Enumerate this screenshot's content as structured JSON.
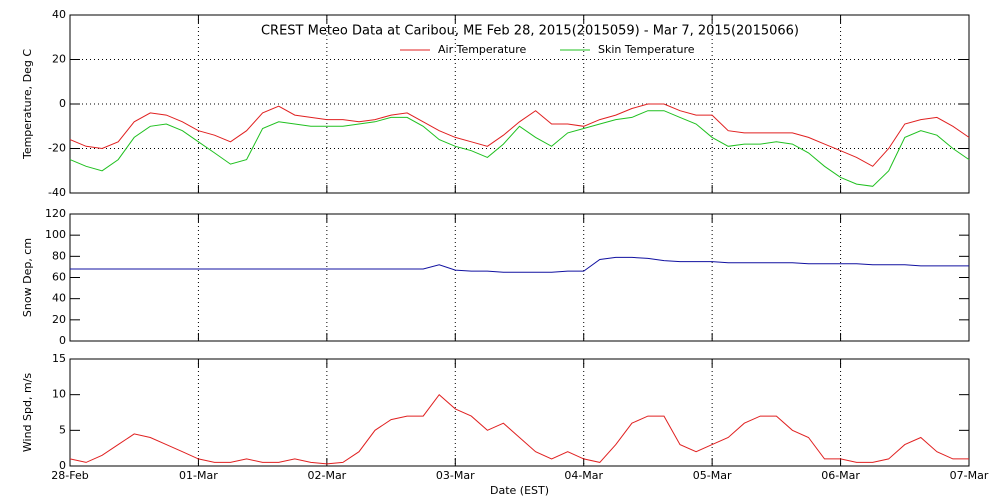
{
  "chart_data": [
    {
      "type": "line",
      "title": "CREST Meteo Data at Caribou, ME   Feb 28, 2015(2015059) - Mar  7, 2015(2015066)",
      "ylabel": "Temperature, Deg C",
      "legend": "top",
      "grid": true,
      "x": [
        0,
        0.125,
        0.25,
        0.375,
        0.5,
        0.625,
        0.75,
        0.875,
        1,
        1.125,
        1.25,
        1.375,
        1.5,
        1.625,
        1.75,
        1.875,
        2,
        2.125,
        2.25,
        2.375,
        2.5,
        2.625,
        2.75,
        2.875,
        3,
        3.125,
        3.25,
        3.375,
        3.5,
        3.625,
        3.75,
        3.875,
        4,
        4.125,
        4.25,
        4.375,
        4.5,
        4.625,
        4.75,
        4.875,
        5,
        5.125,
        5.25,
        5.375,
        5.5,
        5.625,
        5.75,
        5.875,
        6,
        6.125,
        6.25,
        6.375,
        6.5,
        6.625,
        6.75,
        6.875,
        7
      ],
      "xlim": [
        0,
        7
      ],
      "xticks": [
        0,
        1,
        2,
        3,
        4,
        5,
        6,
        7
      ],
      "ylim": [
        -40,
        40
      ],
      "yticks": [
        -40,
        -20,
        0,
        20,
        40
      ],
      "series": [
        {
          "name": "Air Temperature",
          "color": "#e02020",
          "values": [
            -16,
            -19,
            -20,
            -17,
            -8,
            -4,
            -5,
            -8,
            -12,
            -14,
            -17,
            -12,
            -4,
            -1,
            -5,
            -6,
            -7,
            -7,
            -8,
            -7,
            -5,
            -4,
            -8,
            -12,
            -15,
            -17,
            -19,
            -14,
            -8,
            -3,
            -9,
            -9,
            -10,
            -7,
            -5,
            -2,
            0,
            0,
            -3,
            -5,
            -5,
            -12,
            -13,
            -13,
            -13,
            -13,
            -15,
            -18,
            -21,
            -24,
            -28,
            -20,
            -9,
            -7,
            -6,
            -10,
            -15
          ]
        },
        {
          "name": "Skin Temperature",
          "color": "#20c020",
          "values": [
            -25,
            -28,
            -30,
            -25,
            -15,
            -10,
            -9,
            -12,
            -17,
            -22,
            -27,
            -25,
            -11,
            -8,
            -9,
            -10,
            -10,
            -10,
            -9,
            -8,
            -6,
            -6,
            -10,
            -16,
            -19,
            -21,
            -24,
            -18,
            -10,
            -15,
            -19,
            -13,
            -11,
            -9,
            -7,
            -6,
            -3,
            -3,
            -6,
            -9,
            -15,
            -19,
            -18,
            -18,
            -17,
            -18,
            -22,
            -28,
            -33,
            -36,
            -37,
            -30,
            -15,
            -12,
            -14,
            -20,
            -25
          ]
        }
      ]
    },
    {
      "type": "line",
      "ylabel": "Snow Dep, cm",
      "grid": false,
      "x": [
        0,
        0.125,
        0.25,
        0.375,
        0.5,
        0.625,
        0.75,
        0.875,
        1,
        1.125,
        1.25,
        1.375,
        1.5,
        1.625,
        1.75,
        1.875,
        2,
        2.125,
        2.25,
        2.375,
        2.5,
        2.625,
        2.75,
        2.875,
        3,
        3.125,
        3.25,
        3.375,
        3.5,
        3.625,
        3.75,
        3.875,
        4,
        4.125,
        4.25,
        4.375,
        4.5,
        4.625,
        4.75,
        4.875,
        5,
        5.125,
        5.25,
        5.375,
        5.5,
        5.625,
        5.75,
        5.875,
        6,
        6.125,
        6.25,
        6.375,
        6.5,
        6.625,
        6.75,
        6.875,
        7
      ],
      "xlim": [
        0,
        7
      ],
      "xticks": [
        0,
        1,
        2,
        3,
        4,
        5,
        6,
        7
      ],
      "ylim": [
        0,
        120
      ],
      "yticks": [
        0,
        20,
        40,
        60,
        80,
        100,
        120
      ],
      "series": [
        {
          "name": "Snow Depth",
          "color": "#1010a0",
          "values": [
            68,
            68,
            68,
            68,
            68,
            68,
            68,
            68,
            68,
            68,
            68,
            68,
            68,
            68,
            68,
            68,
            68,
            68,
            68,
            68,
            68,
            68,
            68,
            72,
            67,
            66,
            66,
            65,
            65,
            65,
            65,
            66,
            66,
            77,
            79,
            79,
            78,
            76,
            75,
            75,
            75,
            74,
            74,
            74,
            74,
            74,
            73,
            73,
            73,
            73,
            72,
            72,
            72,
            71,
            71,
            71,
            71
          ]
        }
      ]
    },
    {
      "type": "line",
      "ylabel": "Wind Spd, m/s",
      "xlabel": "Date (EST)",
      "grid": false,
      "x": [
        0,
        0.125,
        0.25,
        0.375,
        0.5,
        0.625,
        0.75,
        0.875,
        1,
        1.125,
        1.25,
        1.375,
        1.5,
        1.625,
        1.75,
        1.875,
        2,
        2.125,
        2.25,
        2.375,
        2.5,
        2.625,
        2.75,
        2.875,
        3,
        3.125,
        3.25,
        3.375,
        3.5,
        3.625,
        3.75,
        3.875,
        4,
        4.125,
        4.25,
        4.375,
        4.5,
        4.625,
        4.75,
        4.875,
        5,
        5.125,
        5.25,
        5.375,
        5.5,
        5.625,
        5.75,
        5.875,
        6,
        6.125,
        6.25,
        6.375,
        6.5,
        6.625,
        6.75,
        6.875,
        7
      ],
      "xlim": [
        0,
        7
      ],
      "xticks": [
        {
          "value": 0,
          "label": "28-Feb"
        },
        {
          "value": 1,
          "label": "01-Mar"
        },
        {
          "value": 2,
          "label": "02-Mar"
        },
        {
          "value": 3,
          "label": "03-Mar"
        },
        {
          "value": 4,
          "label": "04-Mar"
        },
        {
          "value": 5,
          "label": "05-Mar"
        },
        {
          "value": 6,
          "label": "06-Mar"
        },
        {
          "value": 7,
          "label": "07-Mar"
        }
      ],
      "ylim": [
        0,
        15
      ],
      "yticks": [
        0,
        5,
        10,
        15
      ],
      "series": [
        {
          "name": "Wind Speed",
          "color": "#e02020",
          "values": [
            1,
            0.5,
            1.5,
            3,
            4.5,
            4,
            3,
            2,
            1,
            0.5,
            0.5,
            1,
            0.5,
            0.5,
            1,
            0.5,
            0.3,
            0.5,
            2,
            5,
            6.5,
            7,
            7,
            10,
            8,
            7,
            5,
            6,
            4,
            2,
            1,
            2,
            1,
            0.5,
            3,
            6,
            7,
            7,
            3,
            2,
            3,
            4,
            6,
            7,
            7,
            5,
            4,
            1,
            1,
            0.5,
            0.5,
            1,
            3,
            4,
            2,
            1,
            1
          ]
        }
      ]
    }
  ]
}
